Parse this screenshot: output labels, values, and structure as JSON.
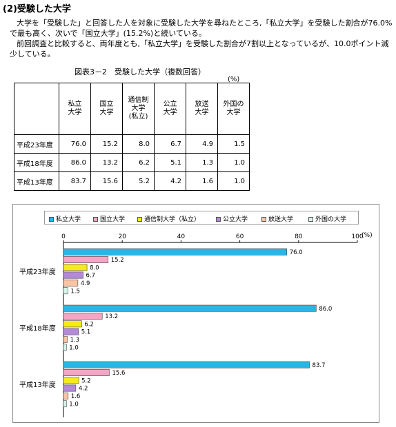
{
  "heading": "(2)受験した大学",
  "paragraph1": "大学を「受験した」と回答した人を対象に受験した大学を尋ねたところ,「私立大学」を受験した割合が76.0%で最も高く、次いで「国立大学」(15.2%)と続いている。",
  "paragraph2": "前回調査と比較すると、両年度とも,「私立大学」を受験した割合が7割以上となっているが、10.0ポイント減少している。",
  "table_caption": "図表3－2　受験した大学（複数回答）",
  "table_unit": "(%)",
  "table": {
    "columns": [
      "私立\n大学",
      "国立\n大学",
      "通信制\n大学\n(私立)",
      "公立\n大学",
      "放送\n大学",
      "外国の\n大学"
    ],
    "rows": [
      {
        "label": "平成23年度",
        "values": [
          "76.0",
          "15.2",
          "8.0",
          "6.7",
          "4.9",
          "1.5"
        ]
      },
      {
        "label": "平成18年度",
        "values": [
          "86.0",
          "13.2",
          "6.2",
          "5.1",
          "1.3",
          "1.0"
        ]
      },
      {
        "label": "平成13年度",
        "values": [
          "83.7",
          "15.6",
          "5.2",
          "4.2",
          "1.6",
          "1.0"
        ]
      }
    ]
  },
  "chart_data": {
    "type": "bar",
    "orientation": "horizontal",
    "categories": [
      "平成23年度",
      "平成18年度",
      "平成13年度"
    ],
    "series": [
      {
        "name": "私立大学",
        "values": [
          76.0,
          86.0,
          83.7
        ]
      },
      {
        "name": "国立大学",
        "values": [
          15.2,
          13.2,
          15.6
        ]
      },
      {
        "name": "通信制大学（私立）",
        "values": [
          8.0,
          6.2,
          5.2
        ]
      },
      {
        "name": "公立大学",
        "values": [
          6.7,
          5.1,
          4.2
        ]
      },
      {
        "name": "放送大学",
        "values": [
          4.9,
          1.3,
          1.6
        ]
      },
      {
        "name": "外国の大学",
        "values": [
          1.5,
          1.0,
          1.0
        ]
      }
    ],
    "colors": [
      "#29b6e6",
      "#f4a6c4",
      "#f5ea1a",
      "#b48ad6",
      "#f7c4a4",
      "#d6f5ec"
    ],
    "xlim": [
      0,
      100
    ],
    "xticks": [
      "0",
      "20",
      "40",
      "60",
      "80",
      "100"
    ],
    "unit_label": "(%)",
    "legend_position": "top",
    "grid": false
  }
}
